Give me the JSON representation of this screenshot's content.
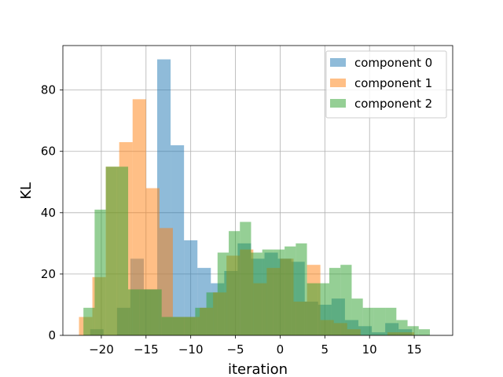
{
  "chart_data": {
    "type": "bar",
    "subtype": "histogram",
    "title": "",
    "xlabel": "iteration",
    "ylabel": "KL",
    "xlim": [
      -24.3,
      19.3
    ],
    "ylim": [
      0,
      94.5
    ],
    "xticks": [
      -20,
      -15,
      -10,
      -5,
      0,
      5,
      10,
      15
    ],
    "xtick_labels": [
      "−20",
      "−15",
      "−10",
      "−5",
      "0",
      "5",
      "10",
      "15"
    ],
    "yticks": [
      0,
      20,
      40,
      60,
      80
    ],
    "ytick_labels": [
      "0",
      "20",
      "40",
      "60",
      "80"
    ],
    "grid": true,
    "legend_position": "top-right",
    "bar_alpha": 0.5,
    "series": [
      {
        "name": "component 0",
        "color": "#1f77b4",
        "bin_edges": [
          -21.25,
          -19.75,
          -18.25,
          -16.75,
          -15.25,
          -13.75,
          -12.25,
          -10.75,
          -9.25,
          -7.75,
          -6.25,
          -4.75,
          -3.25,
          -1.75,
          -0.25,
          1.25,
          2.75,
          4.25,
          5.75,
          7.25,
          8.75,
          10.25,
          11.75,
          13.25,
          14.75
        ],
        "counts": [
          2,
          0,
          9,
          25,
          15,
          90,
          62,
          31,
          22,
          17,
          21,
          30,
          25,
          27,
          25,
          24,
          11,
          10,
          12,
          5,
          3,
          1,
          4,
          2
        ]
      },
      {
        "name": "component 1",
        "color": "#ff7f0e",
        "bin_edges": [
          -22.5,
          -21.0,
          -19.5,
          -18.0,
          -16.5,
          -15.0,
          -13.5,
          -12.0,
          -10.5,
          -9.0,
          -7.5,
          -6.0,
          -4.5,
          -3.0,
          -1.5,
          0.0,
          1.5,
          3.0,
          4.5,
          6.0,
          7.5,
          9.0,
          10.5,
          12.0,
          13.5,
          15.0
        ],
        "counts": [
          6,
          19,
          55,
          63,
          77,
          48,
          35,
          6,
          6,
          9,
          14,
          26,
          28,
          17,
          22,
          25,
          11,
          23,
          5,
          4,
          2,
          0,
          0,
          1,
          1
        ]
      },
      {
        "name": "component 2",
        "color": "#2ca02c",
        "bin_edges": [
          -22.0,
          -20.75,
          -19.5,
          -18.25,
          -17.0,
          -15.75,
          -14.5,
          -13.25,
          -12.0,
          -10.75,
          -9.5,
          -8.25,
          -7.0,
          -5.75,
          -4.5,
          -3.25,
          -2.0,
          -0.75,
          0.5,
          1.75,
          3.0,
          4.25,
          5.5,
          6.75,
          8.0,
          9.25,
          10.5,
          11.75,
          13.0,
          14.25,
          15.5,
          16.75
        ],
        "counts": [
          9,
          41,
          55,
          55,
          15,
          15,
          15,
          6,
          6,
          6,
          9,
          14,
          27,
          34,
          37,
          27,
          28,
          28,
          29,
          30,
          17,
          17,
          22,
          23,
          12,
          9,
          9,
          9,
          5,
          3,
          2
        ]
      }
    ]
  }
}
